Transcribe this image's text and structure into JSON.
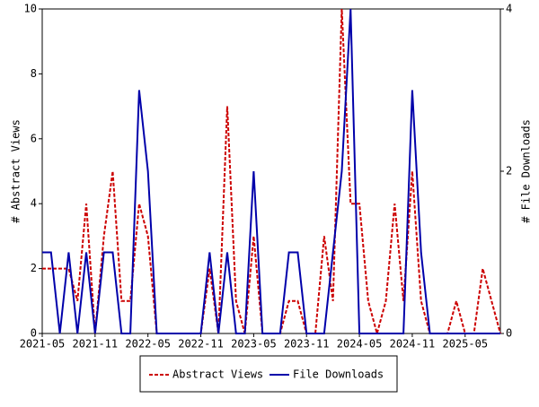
{
  "chart_data": {
    "type": "line",
    "categories": [
      "2021-05",
      null,
      null,
      null,
      null,
      null,
      "2021-11",
      null,
      null,
      null,
      null,
      null,
      "2022-05",
      null,
      null,
      null,
      null,
      null,
      "2022-11",
      null,
      null,
      null,
      null,
      null,
      "2023-05",
      null,
      null,
      null,
      null,
      null,
      "2023-11",
      null,
      null,
      null,
      null,
      null,
      "2024-05",
      null,
      null,
      null,
      null,
      null,
      "2024-11",
      null,
      null,
      null,
      null,
      null,
      "2025-05",
      null,
      null,
      null,
      null
    ],
    "series": [
      {
        "name": "Abstract Views",
        "color": "#cc0000",
        "dash": true,
        "values": [
          2,
          2,
          2,
          2,
          1,
          4,
          0,
          3,
          5,
          1,
          1,
          4,
          3,
          0,
          0,
          0,
          0,
          0,
          0,
          2,
          0,
          7,
          1,
          0,
          3,
          0,
          0,
          0,
          1,
          1,
          0,
          0,
          3,
          1,
          10,
          4,
          4,
          1,
          0,
          1,
          4,
          1,
          5,
          1,
          0,
          0,
          0,
          1,
          0,
          0,
          2,
          1,
          0
        ]
      },
      {
        "name": "File Downloads",
        "color": "#0000aa",
        "axis": "y2",
        "values": [
          1,
          1,
          0,
          1,
          0,
          1,
          0,
          1,
          1,
          0,
          0,
          3,
          2,
          0,
          0,
          0,
          0,
          0,
          0,
          1,
          0,
          1,
          0,
          0,
          2,
          0,
          0,
          0,
          1,
          1,
          0,
          0,
          0,
          1,
          2,
          4,
          0,
          0,
          0,
          0,
          0,
          0,
          3,
          1,
          0,
          0,
          0,
          0,
          0,
          0,
          0,
          0,
          0
        ]
      }
    ],
    "ylabel": "# Abstract Views",
    "y2label": "# File Downloads",
    "ylim": [
      0,
      10
    ],
    "yticks": [
      0,
      2,
      4,
      6,
      8,
      10
    ],
    "y2lim": [
      0,
      4
    ],
    "y2ticks": [
      0,
      2,
      4
    ]
  }
}
